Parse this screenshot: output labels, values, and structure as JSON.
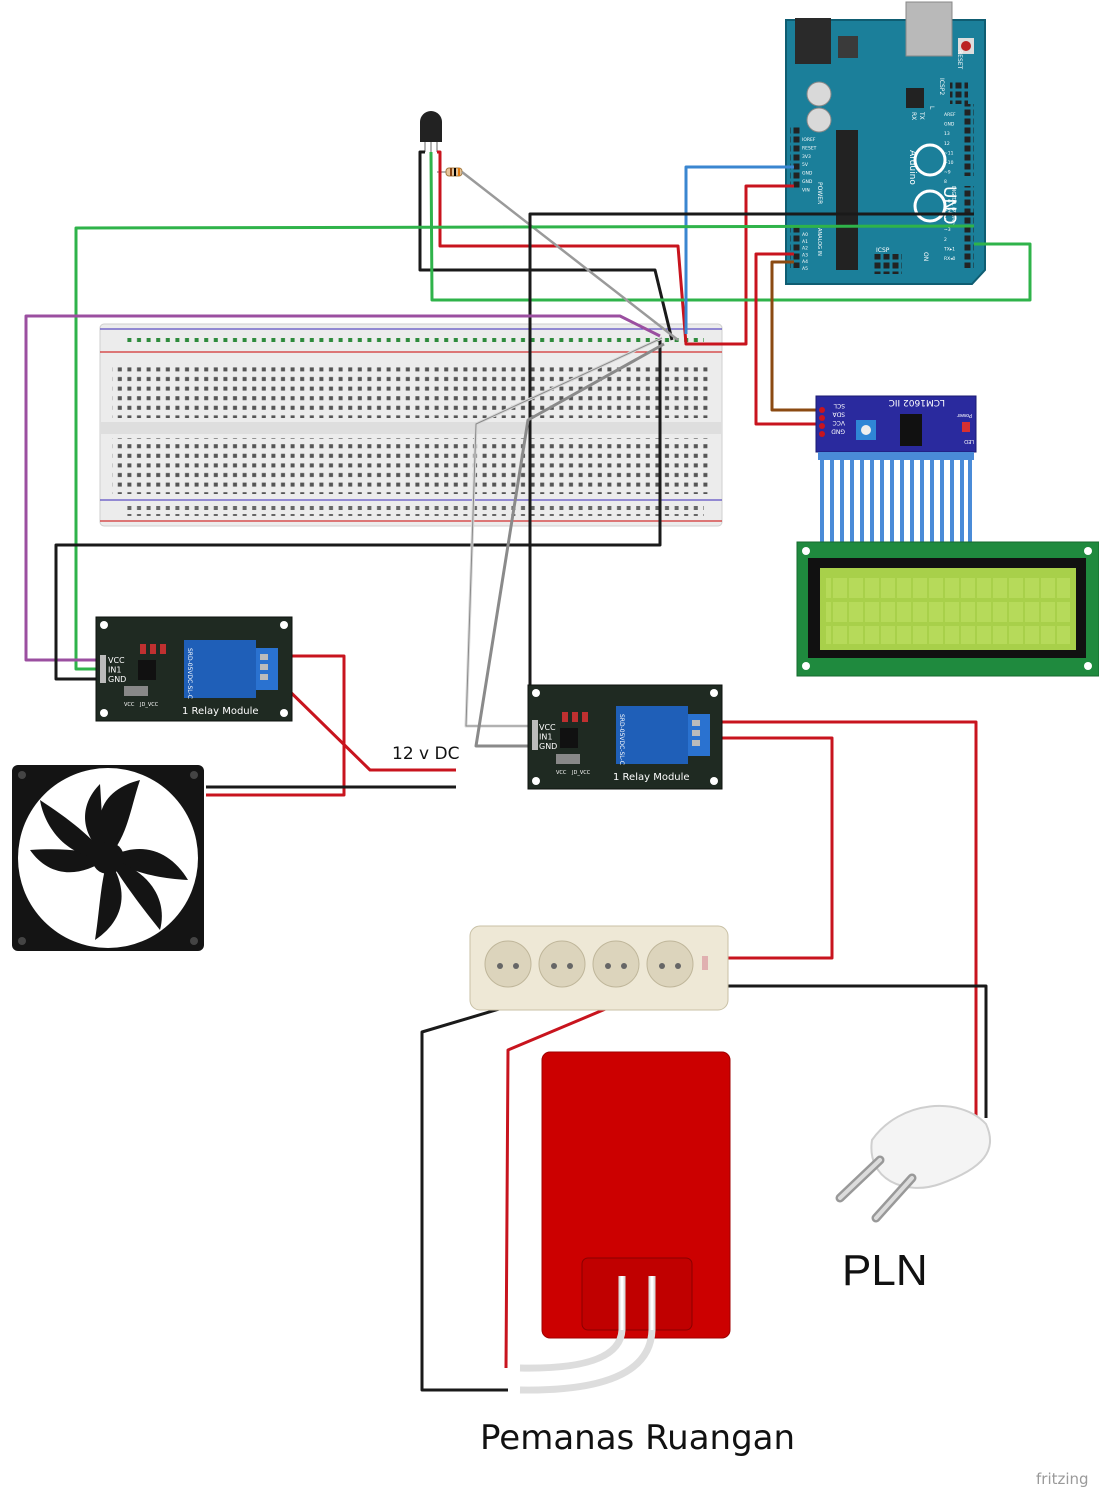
{
  "labels": {
    "dc_supply": "12 v DC",
    "mains": "PLN",
    "heater": "Pemanas Ruangan",
    "watermark": "fritzing"
  },
  "arduino": {
    "board_name": "UNO",
    "brand": "Arduino",
    "reset_label": "RESET",
    "icsp2_label": "ICSP2",
    "icsp_label": "ICSP",
    "on_label": "ON",
    "tx_label": "TX",
    "rx_label": "RX",
    "l_label": "L",
    "power_label": "POWER",
    "analog_label": "ANALOG IN",
    "digital_label": "DIGITAL (PWM~)",
    "power_pins": [
      "IOREF",
      "RESET",
      "3V3",
      "5V",
      "GND",
      "GND",
      "VIN"
    ],
    "analog_pins": [
      "A0",
      "A1",
      "A2",
      "A3",
      "A4",
      "A5"
    ],
    "digital_pins": [
      "AREF",
      "GND",
      "13",
      "12",
      "~11",
      "~10",
      "~9",
      "8",
      "7",
      "~6",
      "~5",
      "4",
      "~3",
      "2",
      "TX▸1",
      "RX◂0"
    ]
  },
  "lcd_backpack": {
    "title": "LCM1602 IIC",
    "power_label": "Power",
    "led_label": "LED",
    "pins": [
      "SCL",
      "SDA",
      "VCC",
      "GND"
    ]
  },
  "relay_1": {
    "title": "1 Relay Module",
    "relay_part": "SRD-05VDC-SL-C",
    "pins": [
      "VCC",
      "IN1",
      "GND"
    ],
    "jumper_labels": [
      "VCC",
      "JD_VCC"
    ]
  },
  "relay_2": {
    "title": "1 Relay Module",
    "relay_part": "SRD-05VDC-SL-C",
    "pins": [
      "VCC",
      "IN1",
      "GND"
    ],
    "jumper_labels": [
      "VCC",
      "JD_VCC"
    ]
  },
  "colors": {
    "wire_red": "#c8141e",
    "wire_black": "#1a1a1a",
    "wire_green": "#2fb34a",
    "wire_blue": "#3a86d0",
    "wire_purple": "#9b4fa0",
    "wire_brown": "#8b4a12",
    "wire_gray": "#8a8a8a",
    "arduino_teal": "#1b7f9a",
    "relay_board": "#1f2a22",
    "relay_blue": "#1f5fb8",
    "lcd_green": "#1f8a3e",
    "lcd_screen": "#a8d04a",
    "heater_red": "#cc0000",
    "socket_ivory": "#eee8d6"
  }
}
